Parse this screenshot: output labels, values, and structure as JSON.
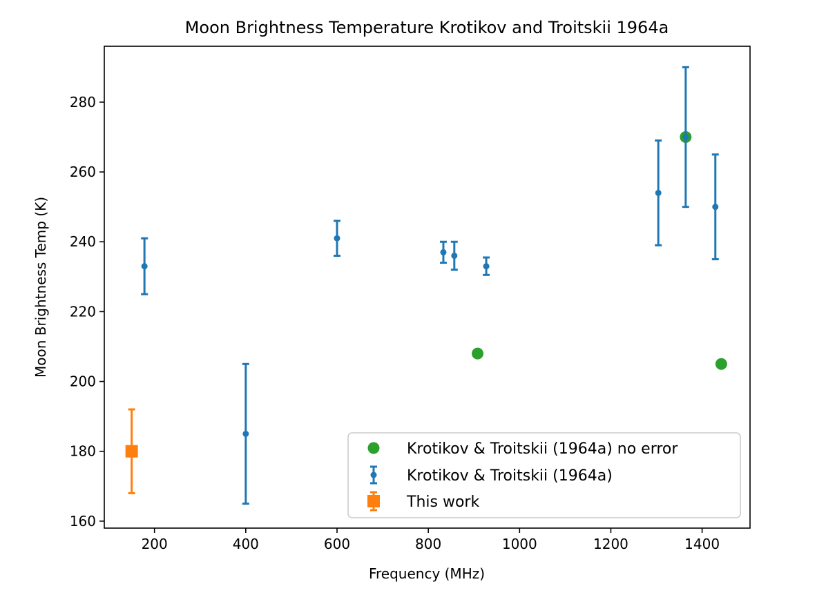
{
  "chart_data": {
    "type": "scatter",
    "title": "Moon Brightness Temperature Krotikov and Troitskii 1964a",
    "xlabel": "Frequency (MHz)",
    "ylabel": "Moon Brightness Temp (K)",
    "xlim": [
      90,
      1505
    ],
    "ylim": [
      158,
      296
    ],
    "xticks": [
      200,
      400,
      600,
      800,
      1000,
      1200,
      1400
    ],
    "yticks": [
      160,
      180,
      200,
      220,
      240,
      260,
      280
    ],
    "legend_position": "lower-right",
    "series": [
      {
        "name": "Krotikov & Troitskii (1964a) no error",
        "marker": "circle",
        "color": "#2ca02c",
        "points": [
          {
            "x": 908,
            "y": 208
          },
          {
            "x": 1364,
            "y": 270
          },
          {
            "x": 1442,
            "y": 205
          }
        ]
      },
      {
        "name": "Krotikov & Troitskii (1964a)",
        "marker": "point-errorbar",
        "color": "#1f77b4",
        "points": [
          {
            "x": 178,
            "y": 233,
            "err": 8
          },
          {
            "x": 400,
            "y": 185,
            "err": 20
          },
          {
            "x": 600,
            "y": 241,
            "err": 5
          },
          {
            "x": 833,
            "y": 237,
            "err": 3
          },
          {
            "x": 857,
            "y": 236,
            "err": 4
          },
          {
            "x": 927,
            "y": 233,
            "err": 2.5
          },
          {
            "x": 1304,
            "y": 254,
            "err": 15
          },
          {
            "x": 1364,
            "y": 270,
            "err": 20
          },
          {
            "x": 1429,
            "y": 250,
            "err": 15
          }
        ]
      },
      {
        "name": "This work",
        "marker": "square-errorbar",
        "color": "#ff7f0e",
        "points": [
          {
            "x": 150,
            "y": 180,
            "err": 12
          }
        ]
      }
    ]
  }
}
